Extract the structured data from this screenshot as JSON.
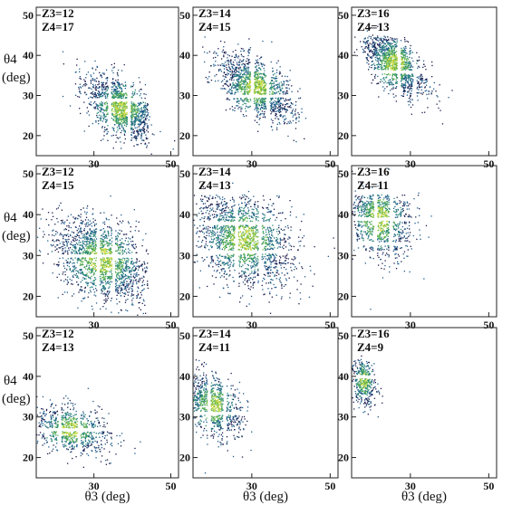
{
  "chart_data": {
    "type": "heatmap",
    "x_axis_label": "θ3 (deg)",
    "y_axis_label_line1": "θ4",
    "y_axis_label_line2": "(deg)",
    "xlim": [
      15,
      52
    ],
    "ylim": [
      15,
      52
    ],
    "x_ticks": [
      "30",
      "50"
    ],
    "y_ticks": [
      "20",
      "30",
      "40",
      "50"
    ],
    "colorscale": [
      "#1b1b4d",
      "#1f5c8a",
      "#2a8a78",
      "#5fb24a",
      "#c8d83a"
    ],
    "panels": [
      {
        "z3": "Z3=12",
        "z4": "Z4=17",
        "cx": 37,
        "cy": 27,
        "sx": 4.5,
        "sy": 4.0,
        "rho": -0.5,
        "n": 1700,
        "gaps_x": [
          34,
          39
        ],
        "gaps_y": [
          29
        ]
      },
      {
        "z3": "Z3=14",
        "z4": "Z4=15",
        "cx": 31,
        "cy": 32,
        "sx": 4.5,
        "sy": 4.0,
        "rho": -0.5,
        "n": 1600,
        "gaps_x": [
          30,
          34
        ],
        "gaps_y": [
          30
        ]
      },
      {
        "z3": "Z3=16",
        "z4": "Z4=13",
        "cx": 26,
        "cy": 38,
        "sx": 3.8,
        "sy": 4.0,
        "rho": -0.6,
        "n": 1500,
        "gaps_x": [
          27,
          31
        ],
        "gaps_y": [
          36
        ]
      },
      {
        "z3": "Z3=12",
        "z4": "Z4=15",
        "cx": 32,
        "cy": 29,
        "sx": 6.0,
        "sy": 5.0,
        "rho": -0.4,
        "n": 2000,
        "gaps_x": [
          31,
          35
        ],
        "gaps_y": [
          30
        ]
      },
      {
        "z3": "Z3=14",
        "z4": "Z4=13",
        "cx": 28,
        "cy": 34,
        "sx": 6.0,
        "sy": 5.5,
        "rho": -0.3,
        "n": 2100,
        "gaps_x": [
          26,
          32
        ],
        "gaps_y": [
          38,
          31
        ]
      },
      {
        "z3": "Z3=16",
        "z4": "Z4=11",
        "cx": 22,
        "cy": 39,
        "sx": 4.0,
        "sy": 5.0,
        "rho": -0.3,
        "n": 1300,
        "gaps_x": [
          21,
          25
        ],
        "gaps_y": [
          39,
          33
        ]
      },
      {
        "z3": "Z3=12",
        "z4": "Z4=13",
        "cx": 24,
        "cy": 27,
        "sx": 5.0,
        "sy": 3.0,
        "rho": -0.3,
        "n": 1000,
        "gaps_x": [
          21,
          26
        ],
        "gaps_y": [
          27
        ]
      },
      {
        "z3": "Z3=14",
        "z4": "Z4=11",
        "cx": 20,
        "cy": 33,
        "sx": 3.5,
        "sy": 4.0,
        "rho": -0.4,
        "n": 1100,
        "gaps_x": [
          19,
          23
        ],
        "gaps_y": [
          31
        ]
      },
      {
        "z3": "Z3=16",
        "z4": "Z4=9",
        "cx": 18,
        "cy": 39,
        "sx": 1.6,
        "sy": 3.0,
        "rho": -0.2,
        "n": 500,
        "gaps_x": [],
        "gaps_y": [
          40
        ]
      }
    ]
  }
}
